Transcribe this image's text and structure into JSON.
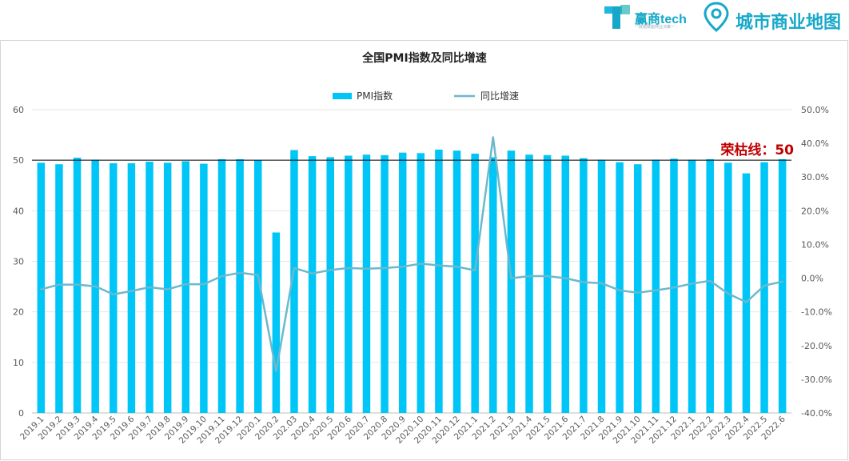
{
  "logos": {
    "brand1": "赢商tech",
    "brand1_tagline": "一数据赋能商业决策一",
    "brand2": "城市商业地图"
  },
  "chart_data": {
    "type": "bar",
    "title": "全国PMI指数及同比增速",
    "categories": [
      "2019.1",
      "2019.2",
      "2019.3",
      "2019.4",
      "2019.5",
      "2019.6",
      "2019.7",
      "2019.8",
      "2019.9",
      "2019.10",
      "2019.11",
      "2019.12",
      "2020.1",
      "2020.2",
      "2020.3",
      "2020.4",
      "2020.5",
      "2020.6",
      "2020.7",
      "2020.8",
      "2020.9",
      "2020.10",
      "2020.11",
      "2020.12",
      "2021.1",
      "2021.2",
      "2021.3",
      "2021.4",
      "2021.5",
      "2021.6",
      "2021.7",
      "2021.8",
      "2021.9",
      "2021.10",
      "2021.11",
      "2021.12",
      "2022.1",
      "2022.2",
      "2022.3",
      "2022.4",
      "2022.5",
      "2022.6"
    ],
    "category_labels": [
      "2019.1",
      "2019.2",
      "2019.3",
      "2019.4",
      "2019.5",
      "2019.6",
      "2019.7",
      "2019.8",
      "2019.9",
      "2019.10",
      "2019.11",
      "2019.12",
      "2020.1",
      "2020.2",
      "202.03",
      "2020.4",
      "2020.5",
      "2020.6",
      "2020.7",
      "2020.8",
      "2020.9",
      "2020.10",
      "2020.11",
      "2020.12",
      "2021.1",
      "2021.2",
      "2021.3",
      "2021.4",
      "2021.5",
      "2021.6",
      "2021.7",
      "2021.8",
      "2021.9",
      "2021.10",
      "2021.11",
      "2021.12",
      "2022.1",
      "2022.2",
      "2022.3",
      "2022.4",
      "2022.5",
      "2022.6"
    ],
    "series": [
      {
        "name": "PMI指数",
        "type": "bar",
        "color": "#00c6f7",
        "values": [
          49.5,
          49.2,
          50.5,
          50.1,
          49.4,
          49.4,
          49.7,
          49.5,
          49.8,
          49.3,
          50.2,
          50.2,
          50.0,
          35.7,
          52.0,
          50.8,
          50.6,
          50.9,
          51.1,
          51.0,
          51.5,
          51.4,
          52.1,
          51.9,
          51.3,
          50.6,
          51.9,
          51.1,
          51.0,
          50.9,
          50.4,
          50.1,
          49.6,
          49.2,
          50.1,
          50.3,
          50.1,
          50.2,
          49.5,
          47.4,
          49.6,
          50.2
        ]
      },
      {
        "name": "同比增速",
        "type": "line",
        "axis": "right",
        "color": "#6cb8cc",
        "values": [
          -3.3,
          -1.9,
          -1.9,
          -2.4,
          -4.8,
          -3.8,
          -2.7,
          -3.3,
          -1.8,
          -1.8,
          0.6,
          1.6,
          0.9,
          -27.6,
          3.0,
          1.4,
          2.4,
          3.0,
          2.8,
          3.0,
          3.4,
          4.3,
          3.8,
          3.4,
          2.3,
          41.8,
          0.0,
          0.6,
          0.6,
          0.0,
          -1.2,
          -1.5,
          -3.6,
          -4.3,
          -3.6,
          -2.8,
          -1.6,
          -0.8,
          -4.6,
          -7.1,
          -2.2,
          -1.0
        ]
      }
    ],
    "y_left": {
      "min": 0,
      "max": 60,
      "ticks": [
        "0",
        "10",
        "20",
        "30",
        "40",
        "50",
        "60"
      ]
    },
    "y_right": {
      "min": -40,
      "max": 50,
      "ticks": [
        "-40.0%",
        "-30.0%",
        "-20.0%",
        "-10.0%",
        "0.0%",
        "10.0%",
        "20.0%",
        "30.0%",
        "40.0%",
        "50.0%"
      ]
    },
    "reference_line": {
      "value": 50,
      "label": "荣枯线：50",
      "color": "#c00000"
    },
    "legend": {
      "position": "top-center"
    },
    "grid": true
  }
}
